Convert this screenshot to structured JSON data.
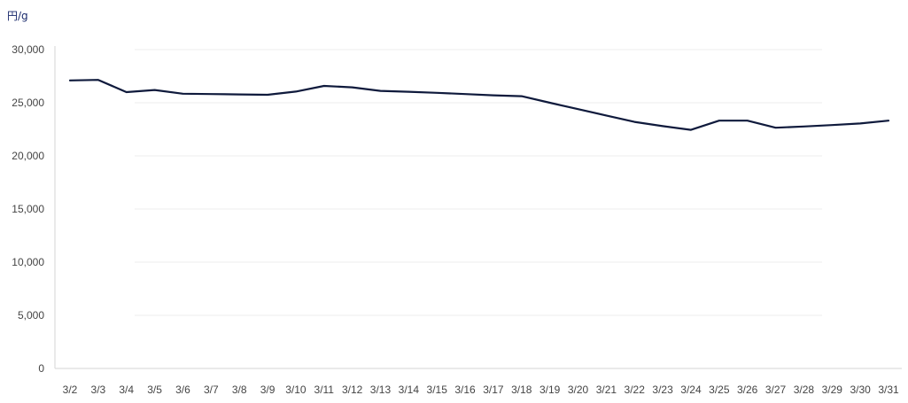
{
  "chart_data": {
    "type": "line",
    "ylabel": "円/g",
    "ylim": [
      0,
      30000
    ],
    "yticks": [
      0,
      5000,
      10000,
      15000,
      20000,
      25000,
      30000
    ],
    "ytick_labels": [
      "0",
      "5,000",
      "10,000",
      "15,000",
      "20,000",
      "25,000",
      "30,000"
    ],
    "categories": [
      "3/2",
      "3/3",
      "3/4",
      "3/5",
      "3/6",
      "3/7",
      "3/8",
      "3/9",
      "3/10",
      "3/11",
      "3/12",
      "3/13",
      "3/14",
      "3/15",
      "3/16",
      "3/17",
      "3/18",
      "3/19",
      "3/20",
      "3/21",
      "3/22",
      "3/23",
      "3/24",
      "3/25",
      "3/26",
      "3/27",
      "3/28",
      "3/29",
      "3/30",
      "3/31"
    ],
    "series": [
      {
        "color": "#0f1a3c",
        "values": [
          27100,
          27150,
          26000,
          26200,
          25850,
          25820,
          25780,
          25750,
          26050,
          26580,
          26450,
          26120,
          26030,
          25930,
          25820,
          25700,
          25620,
          25000,
          24400,
          23800,
          23200,
          22800,
          22450,
          23320,
          23320,
          22650,
          22770,
          22900,
          23050,
          23320
        ]
      }
    ],
    "grid": true,
    "legend": "none"
  }
}
